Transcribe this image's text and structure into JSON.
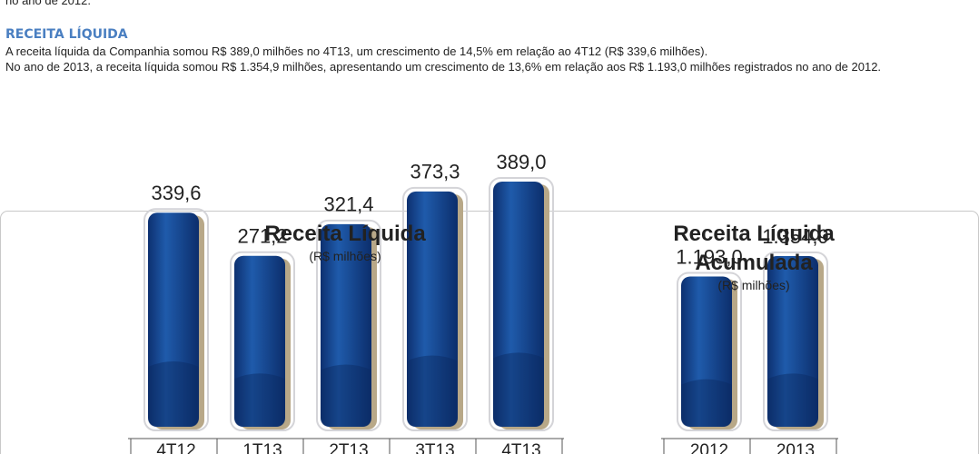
{
  "top_text": "no ano de 2012.",
  "section": {
    "heading": "RECEITA LÍQUIDA",
    "paragraphs": [
      "A receita líquida da Companhia somou R$ 389,0 milhões no 4T13, um crescimento de 14,5% em relação ao 4T12 (R$ 339,6 milhões).",
      "No ano de 2013, a receita líquida somou R$ 1.354,9 milhões, apresentando um crescimento de 13,6% em relação aos R$ 1.193,0 milhões registrados no ano de 2012."
    ]
  },
  "chart_data": [
    {
      "type": "bar",
      "title": "Receita Líquida",
      "subtitle": "(R$ milhões)",
      "categories": [
        "4T12",
        "1T13",
        "2T13",
        "3T13",
        "4T13"
      ],
      "values": [
        339.6,
        271.2,
        321.4,
        373.3,
        389.0
      ],
      "value_labels": [
        "339,6",
        "271,2",
        "321,4",
        "373,3",
        "389,0"
      ],
      "color": "#1a4c97"
    },
    {
      "type": "bar",
      "title": "Receita Líquida Acumulada",
      "subtitle": "(R$ milhões)",
      "categories": [
        "2012",
        "2013"
      ],
      "values": [
        1193.0,
        1354.9
      ],
      "value_labels": [
        "1.193,0",
        "1.354,9"
      ],
      "color": "#1a4c97"
    }
  ]
}
